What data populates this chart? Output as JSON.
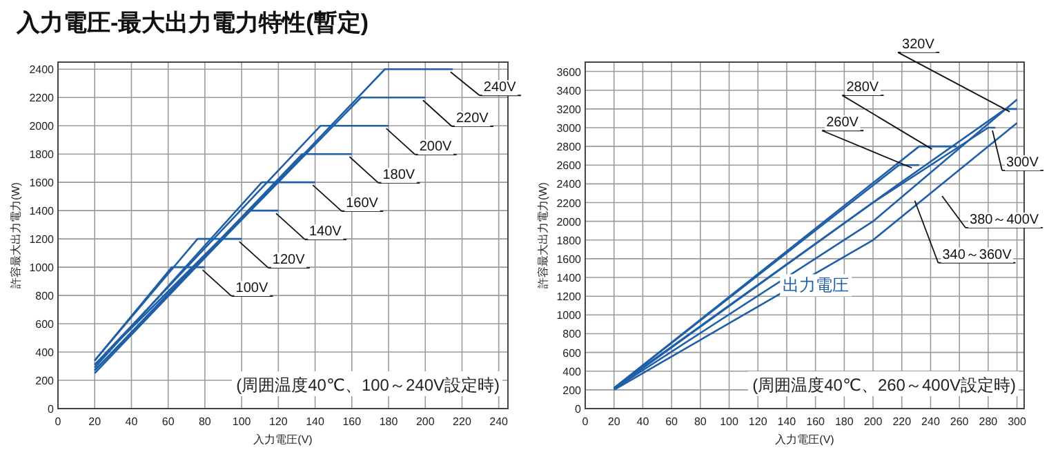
{
  "chart_data": [
    {
      "type": "line",
      "title": "入力電圧-最大出力電力特性(暫定)",
      "xlabel": "入力電圧(V)",
      "ylabel": "許容最大出力電力(W)",
      "xlim": [
        0,
        245
      ],
      "ylim": [
        0,
        2450
      ],
      "xticks": [
        0,
        20,
        40,
        60,
        80,
        100,
        120,
        140,
        160,
        180,
        200,
        220,
        240
      ],
      "yticks": [
        0,
        200,
        400,
        600,
        800,
        1000,
        1200,
        1400,
        1600,
        1800,
        2000,
        2200,
        2400
      ],
      "grid": true,
      "series": [
        {
          "color": "#1f5fa8",
          "x": [
            20,
            62,
            80
          ],
          "values": [
            340,
            1000,
            1000
          ]
        },
        {
          "color": "#1f5fa8",
          "x": [
            20,
            76,
            100
          ],
          "values": [
            340,
            1200,
            1200
          ]
        },
        {
          "color": "#1f5fa8",
          "x": [
            20,
            104,
            120
          ],
          "values": [
            310,
            1400,
            1400
          ]
        },
        {
          "color": "#1f5fa8",
          "x": [
            20,
            111,
            140
          ],
          "values": [
            290,
            1600,
            1600
          ]
        },
        {
          "color": "#1f5fa8",
          "x": [
            20,
            133,
            160
          ],
          "values": [
            270,
            1800,
            1800
          ]
        },
        {
          "color": "#1f5fa8",
          "x": [
            20,
            143,
            180
          ],
          "values": [
            310,
            2000,
            2000
          ]
        },
        {
          "color": "#1f5fa8",
          "x": [
            20,
            165,
            200
          ],
          "values": [
            270,
            2200,
            2200
          ]
        },
        {
          "color": "#1f5fa8",
          "x": [
            20,
            178,
            215
          ],
          "values": [
            250,
            2400,
            2400
          ]
        }
      ],
      "annotations": [
        {
          "text": "100V",
          "x": 78,
          "y": 1000
        },
        {
          "text": "120V",
          "x": 98,
          "y": 1200
        },
        {
          "text": "140V",
          "x": 118,
          "y": 1400
        },
        {
          "text": "160V",
          "x": 138,
          "y": 1600
        },
        {
          "text": "180V",
          "x": 158,
          "y": 1800
        },
        {
          "text": "200V",
          "x": 178,
          "y": 2000
        },
        {
          "text": "220V",
          "x": 198,
          "y": 2200
        },
        {
          "text": "240V",
          "x": 213,
          "y": 2400
        },
        "(周囲温度40℃、100～240V設定時)"
      ]
    },
    {
      "type": "line",
      "xlabel": "入力電圧(V)",
      "ylabel": "許容最大出力電力(W)",
      "xlim": [
        0,
        305
      ],
      "ylim": [
        0,
        3700
      ],
      "xticks": [
        0,
        20,
        40,
        60,
        80,
        100,
        120,
        140,
        160,
        180,
        200,
        220,
        240,
        260,
        280,
        300
      ],
      "yticks": [
        0,
        200,
        400,
        600,
        800,
        1000,
        1200,
        1400,
        1600,
        1800,
        2000,
        2200,
        2400,
        2600,
        2800,
        3000,
        3200,
        3400,
        3600
      ],
      "grid": true,
      "series": [
        {
          "color": "#1f5fa8",
          "x": [
            20,
            218,
            232
          ],
          "values": [
            220,
            2600,
            2600
          ]
        },
        {
          "color": "#1f5fa8",
          "x": [
            20,
            232,
            258
          ],
          "values": [
            220,
            2800,
            2800
          ]
        },
        {
          "color": "#1f5fa8",
          "x": [
            20,
            200,
            280,
            285
          ],
          "values": [
            210,
            2200,
            3000,
            3000
          ]
        },
        {
          "color": "#1f5fa8",
          "x": [
            20,
            218,
            292,
            300
          ],
          "values": [
            220,
            2400,
            3200,
            3200
          ]
        },
        {
          "color": "#1f5fa8",
          "x": [
            20,
            200,
            300
          ],
          "values": [
            210,
            2000,
            3300
          ]
        },
        {
          "color": "#1f5fa8",
          "x": [
            20,
            200,
            300
          ],
          "values": [
            200,
            1800,
            3050
          ]
        }
      ],
      "annotations": [
        {
          "text": "260V",
          "x": 226,
          "y": 2600
        },
        {
          "text": "280V",
          "x": 240,
          "y": 2800
        },
        {
          "text": "300V",
          "x": 282,
          "y": 3000
        },
        {
          "text": "320V",
          "x": 294,
          "y": 3200
        },
        {
          "text": "380～400V",
          "x": 247,
          "y": 2300
        },
        {
          "text": "340～360V",
          "x": 228,
          "y": 2250
        },
        "出力電圧",
        "(周囲温度40℃、260～400V設定時)"
      ]
    }
  ]
}
